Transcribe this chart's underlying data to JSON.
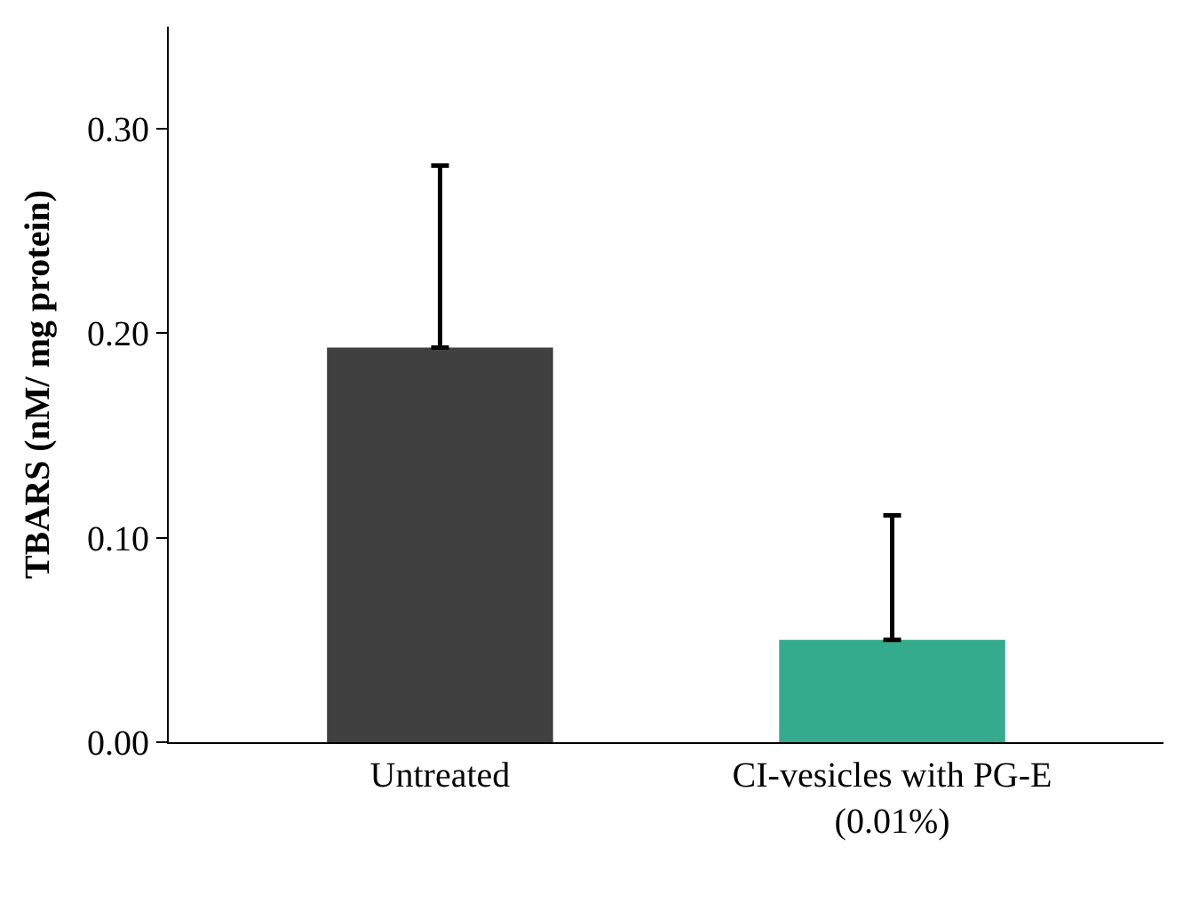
{
  "chart_data": {
    "type": "bar",
    "ylabel": "TBARS (nM/ mg protein)",
    "categories": [
      "Untreated",
      "CI-vesicles with PG-E\n(0.01%)"
    ],
    "values": [
      0.193,
      0.05
    ],
    "colors": [
      "#404040",
      "#34ab8c"
    ],
    "errors": [
      [
        0.193,
        0.282
      ],
      [
        0.05,
        0.111
      ]
    ],
    "ylim": [
      0,
      0.35
    ],
    "yticks": [
      {
        "value": 0,
        "label": "0.00"
      },
      {
        "value": 0.1,
        "label": "0.10"
      },
      {
        "value": 0.2,
        "label": "0.20"
      },
      {
        "value": 0.3,
        "label": "0.30"
      }
    ]
  }
}
